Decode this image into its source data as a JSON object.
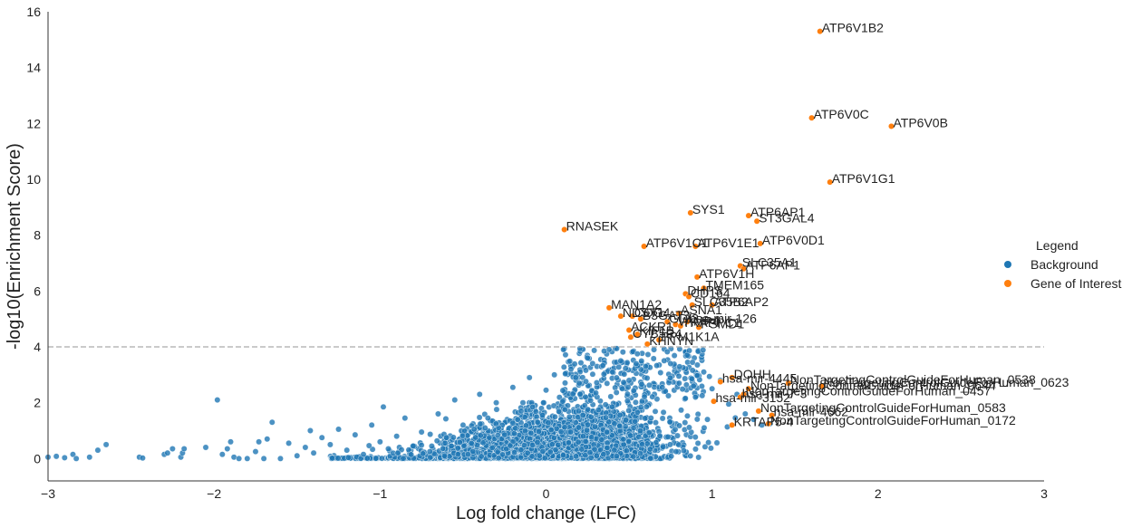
{
  "chart_data": {
    "type": "scatter",
    "xlabel": "Log fold change (LFC)",
    "ylabel": "-log10(Enrichment Score)",
    "xlim": [
      -3,
      3
    ],
    "ylim": [
      -0.8,
      16
    ],
    "xticks": [
      -3,
      -2,
      -1,
      0,
      1,
      2,
      3
    ],
    "yticks": [
      0,
      2,
      4,
      6,
      8,
      10,
      12,
      14,
      16
    ],
    "xtick_labels": [
      "−3",
      "−2",
      "−1",
      "0",
      "1",
      "2",
      "3"
    ],
    "ytick_labels": [
      "0",
      "2",
      "4",
      "6",
      "8",
      "10",
      "12",
      "14",
      "16"
    ],
    "threshold_line": {
      "y": 4,
      "style": "dashed",
      "color": "#aaaaaa"
    },
    "grid": false,
    "legend": {
      "title": "Legend",
      "placement": "right",
      "entries": [
        {
          "label": "Background",
          "color": "#1f77b4"
        },
        {
          "label": "Gene of Interest",
          "color": "#ff7f0e"
        }
      ]
    },
    "series": [
      {
        "name": "Background",
        "color": "#1f77b4",
        "description_points": [
          [
            -3.0,
            0.05
          ],
          [
            -2.95,
            0.08
          ],
          [
            -2.9,
            0.03
          ],
          [
            -2.85,
            0.15
          ],
          [
            -2.83,
            0.0
          ],
          [
            -2.75,
            0.05
          ],
          [
            -2.7,
            0.3
          ],
          [
            -2.65,
            0.5
          ],
          [
            -2.45,
            0.05
          ],
          [
            -2.43,
            0.02
          ],
          [
            -2.3,
            0.15
          ],
          [
            -2.28,
            0.2
          ],
          [
            -2.25,
            0.35
          ],
          [
            -2.2,
            0.05
          ],
          [
            -2.19,
            0.2
          ],
          [
            -2.18,
            0.35
          ],
          [
            -2.05,
            0.4
          ],
          [
            -1.98,
            2.1
          ],
          [
            -1.95,
            0.15
          ],
          [
            -1.92,
            0.35
          ],
          [
            -1.9,
            0.6
          ],
          [
            -1.88,
            0.05
          ],
          [
            -1.85,
            0.0
          ],
          [
            -1.8,
            0.0
          ],
          [
            -1.75,
            0.25
          ],
          [
            -1.73,
            0.6
          ],
          [
            -1.7,
            0.0
          ],
          [
            -1.68,
            0.7
          ],
          [
            -1.65,
            1.3
          ],
          [
            -1.6,
            0.0
          ],
          [
            -1.55,
            0.55
          ],
          [
            -1.5,
            0.1
          ],
          [
            -1.45,
            0.4
          ],
          [
            -1.42,
            1.0
          ],
          [
            -1.4,
            0.2
          ],
          [
            -1.35,
            0.75
          ],
          [
            -1.3,
            0.5
          ],
          [
            -1.25,
            1.05
          ],
          [
            -1.2,
            0.3
          ],
          [
            -1.15,
            0.85
          ],
          [
            -1.1,
            0.15
          ],
          [
            -1.05,
            1.2
          ],
          [
            -1.0,
            0.6
          ],
          [
            -0.98,
            1.85
          ],
          [
            -0.95,
            0.35
          ],
          [
            -0.9,
            0.8
          ],
          [
            -0.85,
            1.45
          ],
          [
            -0.8,
            0.45
          ],
          [
            -0.75,
            0.95
          ],
          [
            -0.7,
            0.25
          ],
          [
            -0.65,
            1.6
          ],
          [
            -0.6,
            0.75
          ],
          [
            -0.55,
            2.1
          ],
          [
            -0.5,
            1.2
          ],
          [
            -0.45,
            0.55
          ],
          [
            -0.4,
            2.3
          ],
          [
            -0.35,
            1.45
          ],
          [
            -0.3,
            2.0
          ],
          [
            -0.25,
            0.85
          ],
          [
            -0.2,
            2.55
          ],
          [
            -0.15,
            1.7
          ],
          [
            -0.1,
            2.9
          ],
          [
            -0.05,
            1.3
          ],
          [
            0.0,
            2.45
          ],
          [
            0.05,
            3.0
          ],
          [
            0.1,
            2.05
          ],
          [
            0.15,
            3.2
          ],
          [
            0.2,
            2.7
          ],
          [
            0.25,
            3.6
          ],
          [
            0.3,
            2.35
          ],
          [
            0.35,
            3.85
          ],
          [
            0.4,
            3.1
          ],
          [
            0.45,
            3.5
          ],
          [
            0.5,
            2.8
          ],
          [
            0.55,
            3.75
          ],
          [
            0.6,
            3.3
          ],
          [
            0.65,
            3.9
          ],
          [
            0.7,
            2.55
          ],
          [
            0.75,
            3.4
          ],
          [
            0.8,
            2.95
          ],
          [
            0.85,
            3.7
          ],
          [
            0.9,
            2.2
          ],
          [
            0.95,
            3.1
          ],
          [
            1.0,
            2.5
          ],
          [
            1.05,
            2.8
          ],
          [
            1.1,
            1.95
          ],
          [
            1.15,
            2.3
          ],
          [
            1.2,
            1.6
          ],
          [
            1.25,
            1.4
          ],
          [
            1.3,
            1.2
          ],
          [
            1.35,
            1.25
          ]
        ]
      },
      {
        "name": "Gene of Interest",
        "color": "#ff7f0e",
        "points": [
          {
            "label": "ATP6V1B2",
            "x": 1.65,
            "y": 15.3
          },
          {
            "label": "ATP6V0C",
            "x": 1.6,
            "y": 12.2
          },
          {
            "label": "ATP6V0B",
            "x": 2.08,
            "y": 11.9
          },
          {
            "label": "ATP6V1G1",
            "x": 1.71,
            "y": 9.9
          },
          {
            "label": "SYS1",
            "x": 0.87,
            "y": 8.8
          },
          {
            "label": "ATP6AP1",
            "x": 1.22,
            "y": 8.7
          },
          {
            "label": "ST3GAL4",
            "x": 1.27,
            "y": 8.5
          },
          {
            "label": "RNASEK",
            "x": 0.11,
            "y": 8.2
          },
          {
            "label": "ATP6V0D1",
            "x": 1.29,
            "y": 7.7
          },
          {
            "label": "ATP6V1C1",
            "x": 0.59,
            "y": 7.6
          },
          {
            "label": "ATP6V1E1",
            "x": 0.9,
            "y": 7.6
          },
          {
            "label": "SLC35A1",
            "x": 1.17,
            "y": 6.9
          },
          {
            "label": "ATP6AP1",
            "x": 1.19,
            "y": 6.8
          },
          {
            "label": "ATP6V1H",
            "x": 0.91,
            "y": 6.5
          },
          {
            "label": "TMEM165",
            "x": 0.95,
            "y": 6.1
          },
          {
            "label": "DHPS",
            "x": 0.84,
            "y": 5.9
          },
          {
            "label": "CD164",
            "x": 0.86,
            "y": 5.8
          },
          {
            "label": "SLC35B2",
            "x": 0.88,
            "y": 5.5
          },
          {
            "label": "ATP6AP2",
            "x": 1.0,
            "y": 5.5
          },
          {
            "label": "ASNA1",
            "x": 0.8,
            "y": 5.2
          },
          {
            "label": "MAN1A2",
            "x": 0.38,
            "y": 5.4
          },
          {
            "label": "NDST1",
            "x": 0.45,
            "y": 5.1
          },
          {
            "label": "COG4",
            "x": 0.52,
            "y": 5.1
          },
          {
            "label": "B3GAT3",
            "x": 0.57,
            "y": 5.0
          },
          {
            "label": "hsa-mir-126",
            "x": 0.85,
            "y": 4.9
          },
          {
            "label": "GDI2",
            "x": 0.73,
            "y": 4.9
          },
          {
            "label": "VAMP4",
            "x": 0.78,
            "y": 4.8
          },
          {
            "label": "TRAPPC1",
            "x": 0.81,
            "y": 4.75
          },
          {
            "label": "ACKR1",
            "x": 0.5,
            "y": 4.6
          },
          {
            "label": "PSMD1",
            "x": 0.92,
            "y": 4.7
          },
          {
            "label": "KIF1B",
            "x": 0.55,
            "y": 4.45
          },
          {
            "label": "CYB5R4",
            "x": 0.51,
            "y": 4.35
          },
          {
            "label": "KHNYN",
            "x": 0.61,
            "y": 4.1
          },
          {
            "label": "PPM1K1A",
            "x": 0.68,
            "y": 4.25
          },
          {
            "label": "DOHH",
            "x": 1.12,
            "y": 2.9
          },
          {
            "label": "hsa-mir-4445",
            "x": 1.05,
            "y": 2.75
          },
          {
            "label": "NonTargetingControlGuideForHuman_0538",
            "x": 1.46,
            "y": 2.7
          },
          {
            "label": "NonTargetingControlGuideForHuman_0623",
            "x": 1.66,
            "y": 2.6
          },
          {
            "label": "NonTargetingControlGuideForHuman_0644",
            "x": 1.22,
            "y": 2.5
          },
          {
            "label": "hsa-mir-7-3",
            "x": 1.17,
            "y": 2.2
          },
          {
            "label": "NonTargetingControlGuideForHuman_0457",
            "x": 1.19,
            "y": 2.3
          },
          {
            "label": "hsa-mir-3152",
            "x": 1.01,
            "y": 2.05
          },
          {
            "label": "NonTargetingControlGuideForHuman_0583",
            "x": 1.28,
            "y": 1.7
          },
          {
            "label": "hsa-mir-4662",
            "x": 1.36,
            "y": 1.55
          },
          {
            "label": "KRTAP5-4",
            "x": 1.12,
            "y": 1.2
          },
          {
            "label": "NonTargetingControlGuideForHuman_0172",
            "x": 1.34,
            "y": 1.25
          }
        ]
      }
    ]
  }
}
